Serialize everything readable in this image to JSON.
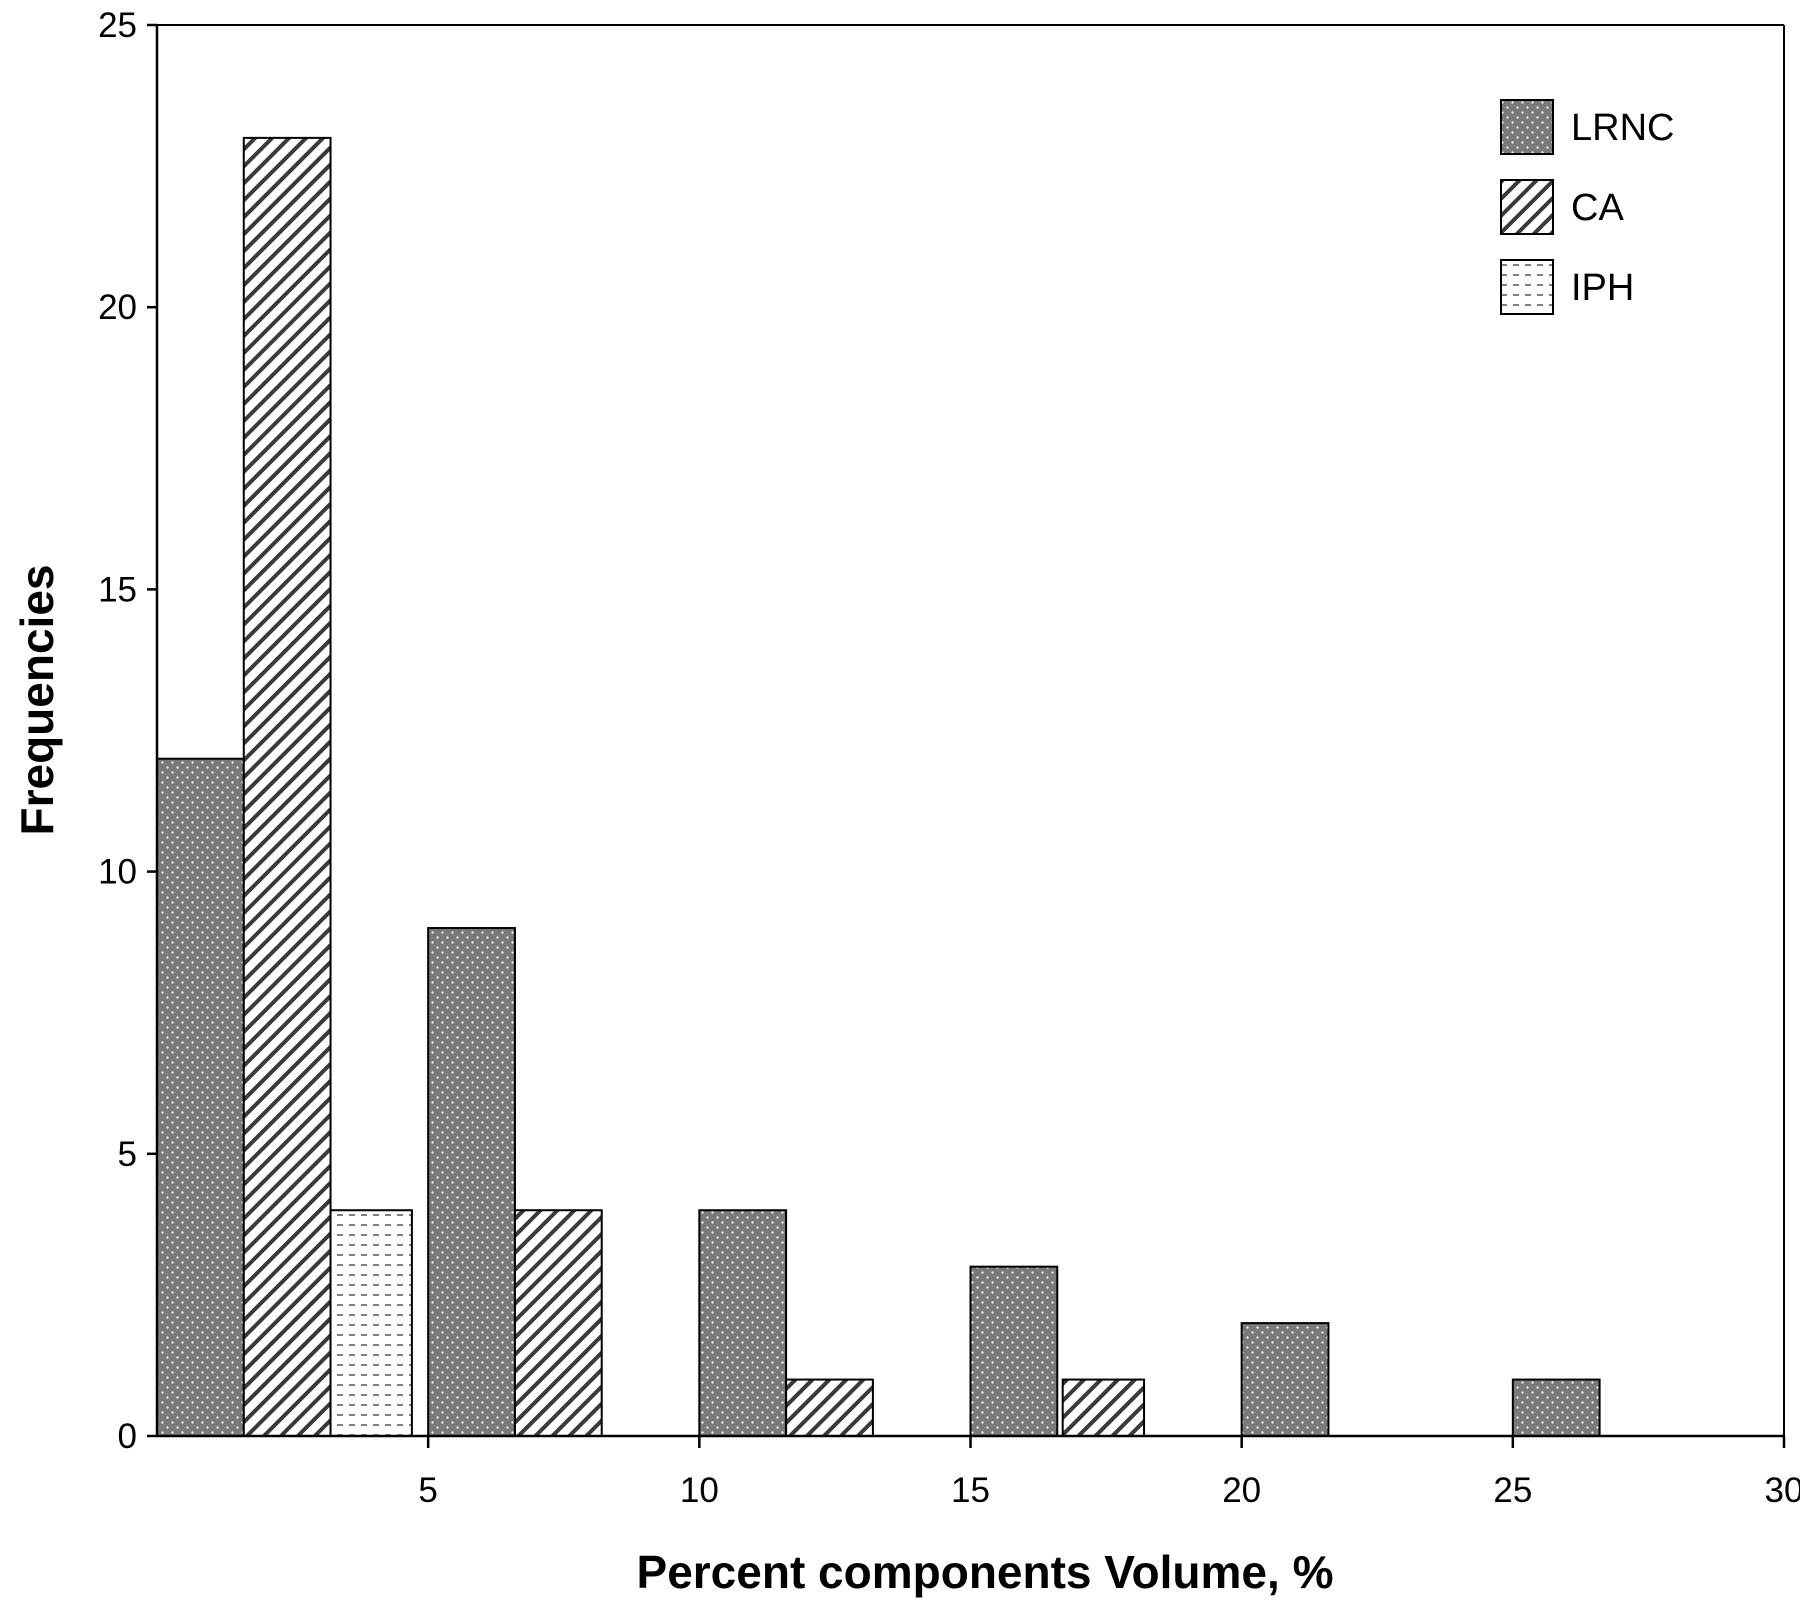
{
  "chart_data": {
    "type": "bar",
    "xlabel": "Percent components Volume, %",
    "ylabel": "Frequencies",
    "xlim": [
      0,
      30
    ],
    "ylim": [
      0,
      25
    ],
    "x_ticks": [
      5,
      10,
      15,
      20,
      25,
      30
    ],
    "y_ticks": [
      0,
      5,
      10,
      15,
      20,
      25
    ],
    "grid": false,
    "legend_position": "top-right",
    "series": [
      {
        "name": "LRNC",
        "pattern": "dots-on-dark-gray",
        "color": "#7a7a7a",
        "points": [
          [
            0,
            1.6,
            12
          ],
          [
            5.0,
            6.6,
            9
          ],
          [
            10.0,
            11.6,
            4
          ],
          [
            15.0,
            16.6,
            3
          ],
          [
            20.0,
            21.6,
            2
          ],
          [
            25.0,
            26.6,
            1
          ]
        ]
      },
      {
        "name": "CA",
        "pattern": "diagonal-hatch",
        "color": "#ffffff",
        "points": [
          [
            1.6,
            3.2,
            23
          ],
          [
            6.6,
            8.2,
            4
          ],
          [
            11.6,
            13.2,
            1
          ],
          [
            16.7,
            18.2,
            1
          ]
        ]
      },
      {
        "name": "IPH",
        "pattern": "horizontal-dashes",
        "color": "#ffffff",
        "points": [
          [
            3.2,
            4.7,
            4
          ]
        ]
      }
    ]
  }
}
